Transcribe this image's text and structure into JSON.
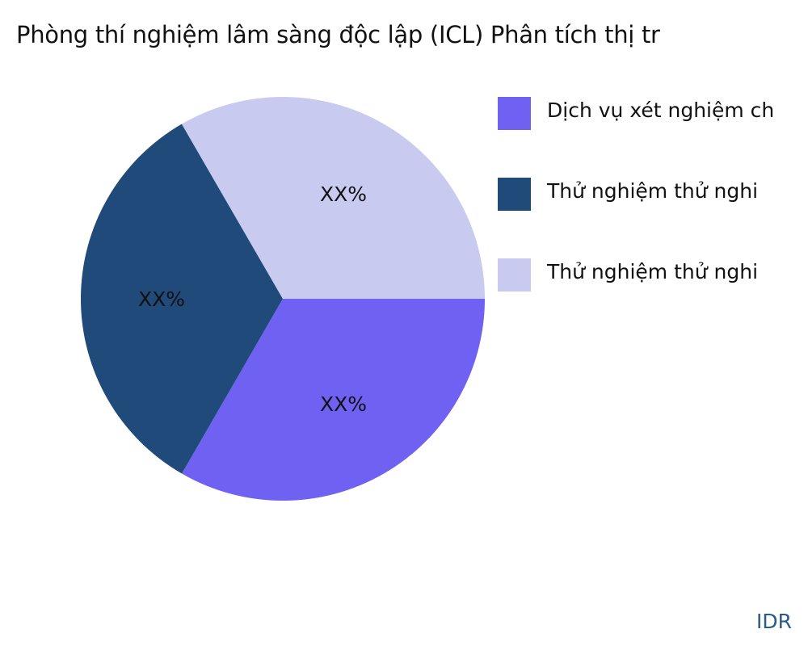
{
  "chart_data": {
    "type": "pie",
    "title": "Phòng thí nghiệm lâm sàng độc lập (ICL) Phân tích thị tr",
    "slices": [
      {
        "label": "Dịch vụ xét nghiệm ch",
        "value": 33.33,
        "data_label": "XX%",
        "color": "#6f61f2"
      },
      {
        "label": "Thử nghiệm thử nghi",
        "value": 33.33,
        "data_label": "XX%",
        "color": "#1f4a7a"
      },
      {
        "label": "Thử nghiệm thử nghi",
        "value": 33.34,
        "data_label": "XX%",
        "color": "#c8caf0"
      }
    ],
    "legend_position": "right"
  },
  "brand": "IDR"
}
